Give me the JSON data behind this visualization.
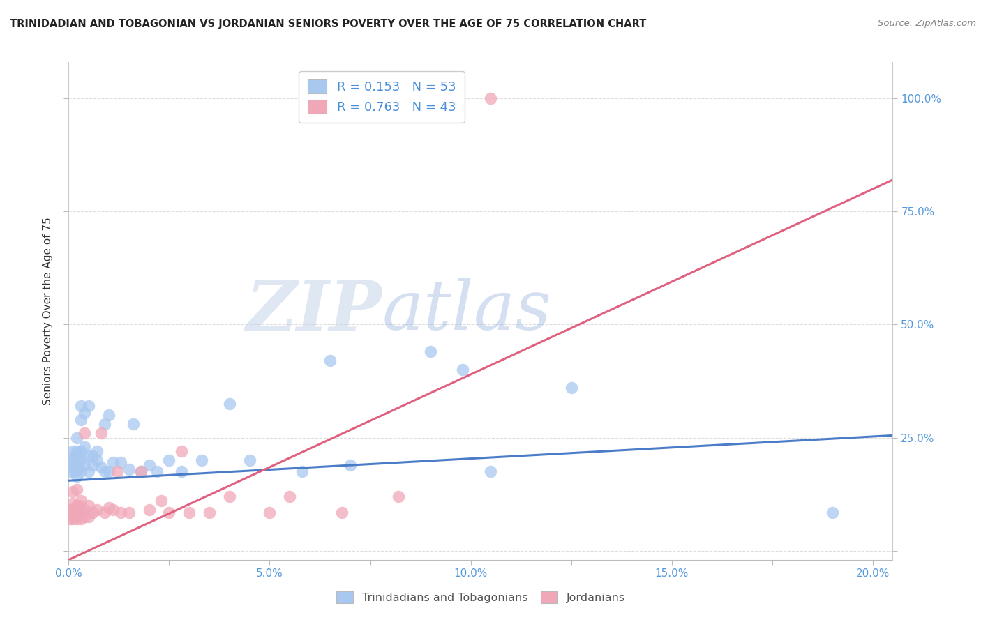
{
  "title": "TRINIDADIAN AND TOBAGONIAN VS JORDANIAN SENIORS POVERTY OVER THE AGE OF 75 CORRELATION CHART",
  "source": "Source: ZipAtlas.com",
  "ylabel": "Seniors Poverty Over the Age of 75",
  "xlim": [
    0.0,
    0.205
  ],
  "ylim": [
    -0.02,
    1.08
  ],
  "xtick_labels": [
    "0.0%",
    "",
    "5.0%",
    "",
    "10.0%",
    "",
    "15.0%",
    "",
    "20.0%"
  ],
  "xtick_vals": [
    0.0,
    0.025,
    0.05,
    0.075,
    0.1,
    0.125,
    0.15,
    0.175,
    0.2
  ],
  "ytick_vals": [
    0.0,
    0.25,
    0.5,
    0.75,
    1.0
  ],
  "ytick_labels": [
    "",
    "25.0%",
    "50.0%",
    "75.0%",
    "100.0%"
  ],
  "blue_R": 0.153,
  "blue_N": 53,
  "pink_R": 0.763,
  "pink_N": 43,
  "blue_color": "#a8c8f0",
  "pink_color": "#f0a8b8",
  "blue_line_color": "#4a7cc7",
  "pink_line_color": "#e06080",
  "legend_blue_label": "R = 0.153   N = 53",
  "legend_pink_label": "R = 0.763   N = 43",
  "bottom_legend_blue": "Trinidadians and Tobagonians",
  "bottom_legend_pink": "Jordanians",
  "watermark_zip": "ZIP",
  "watermark_atlas": "atlas",
  "background_color": "#ffffff",
  "blue_x": [
    0.0005,
    0.001,
    0.001,
    0.001,
    0.0015,
    0.0015,
    0.002,
    0.002,
    0.002,
    0.002,
    0.002,
    0.0025,
    0.0025,
    0.003,
    0.003,
    0.003,
    0.003,
    0.003,
    0.004,
    0.004,
    0.004,
    0.005,
    0.005,
    0.005,
    0.006,
    0.006,
    0.007,
    0.007,
    0.008,
    0.009,
    0.009,
    0.01,
    0.01,
    0.011,
    0.013,
    0.015,
    0.016,
    0.018,
    0.02,
    0.022,
    0.025,
    0.028,
    0.033,
    0.04,
    0.045,
    0.058,
    0.065,
    0.07,
    0.09,
    0.098,
    0.105,
    0.125,
    0.19
  ],
  "blue_y": [
    0.175,
    0.19,
    0.2,
    0.22,
    0.175,
    0.21,
    0.165,
    0.19,
    0.21,
    0.22,
    0.25,
    0.18,
    0.21,
    0.175,
    0.2,
    0.22,
    0.29,
    0.32,
    0.19,
    0.23,
    0.305,
    0.175,
    0.21,
    0.32,
    0.19,
    0.21,
    0.2,
    0.22,
    0.185,
    0.175,
    0.28,
    0.175,
    0.3,
    0.195,
    0.195,
    0.18,
    0.28,
    0.175,
    0.19,
    0.175,
    0.2,
    0.175,
    0.2,
    0.325,
    0.2,
    0.175,
    0.42,
    0.19,
    0.44,
    0.4,
    0.175,
    0.36,
    0.085
  ],
  "pink_x": [
    0.0005,
    0.0005,
    0.001,
    0.001,
    0.001,
    0.001,
    0.0015,
    0.0015,
    0.002,
    0.002,
    0.002,
    0.002,
    0.0025,
    0.003,
    0.003,
    0.003,
    0.004,
    0.004,
    0.004,
    0.005,
    0.005,
    0.006,
    0.007,
    0.008,
    0.009,
    0.01,
    0.011,
    0.012,
    0.013,
    0.015,
    0.018,
    0.02,
    0.023,
    0.025,
    0.028,
    0.03,
    0.035,
    0.04,
    0.05,
    0.055,
    0.068,
    0.082,
    0.105
  ],
  "pink_y": [
    0.07,
    0.09,
    0.07,
    0.09,
    0.105,
    0.13,
    0.075,
    0.09,
    0.07,
    0.09,
    0.1,
    0.135,
    0.1,
    0.07,
    0.085,
    0.11,
    0.075,
    0.09,
    0.26,
    0.075,
    0.1,
    0.085,
    0.09,
    0.26,
    0.085,
    0.095,
    0.09,
    0.175,
    0.085,
    0.085,
    0.175,
    0.09,
    0.11,
    0.085,
    0.22,
    0.085,
    0.085,
    0.12,
    0.085,
    0.12,
    0.085,
    0.12,
    1.0
  ],
  "blue_trend_x": [
    0.0,
    0.205
  ],
  "blue_trend_y": [
    0.155,
    0.255
  ],
  "pink_trend_x": [
    0.0,
    0.205
  ],
  "pink_trend_y": [
    -0.02,
    0.82
  ]
}
